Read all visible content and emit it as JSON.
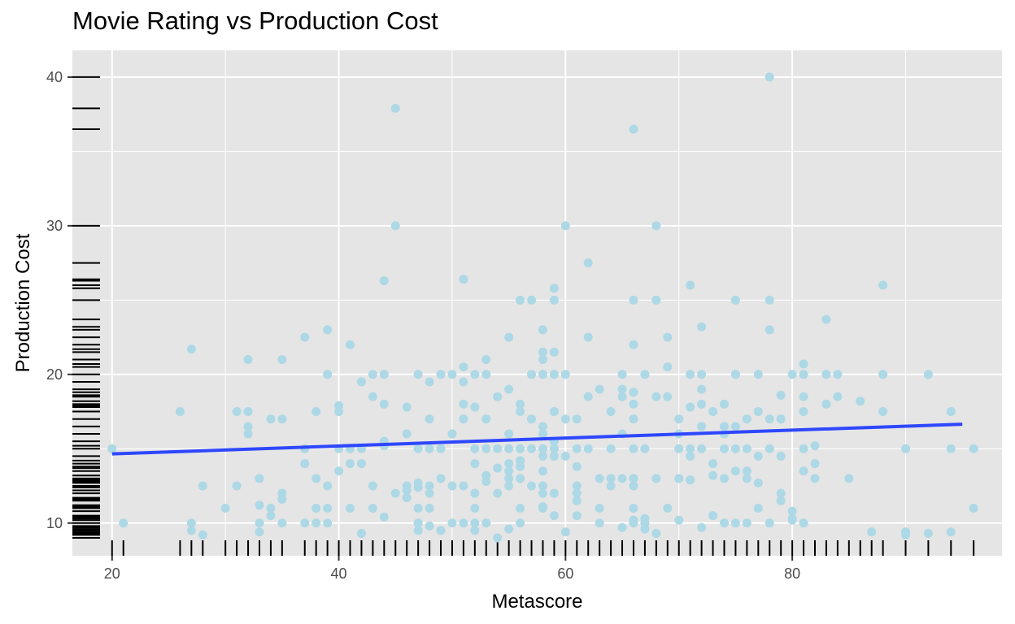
{
  "chart_data": {
    "type": "scatter",
    "title": "Movie Rating vs Production Cost",
    "xlabel": "Metascore",
    "ylabel": "Production Cost",
    "xlim": [
      16.5,
      98.5
    ],
    "ylim": [
      7.8,
      41.8
    ],
    "x_ticks": [
      20,
      40,
      60,
      80
    ],
    "y_ticks": [
      10,
      20,
      30,
      40
    ],
    "grid": true,
    "rug": true,
    "colors": {
      "points": "#add8e6",
      "trend": "#2e47ff",
      "panel": "#e5e5e5",
      "grid": "#ffffff",
      "rug": "#000000"
    },
    "trend_line": {
      "x": [
        20,
        95
      ],
      "y": [
        14.65,
        16.65
      ]
    },
    "points": [
      [
        20,
        15
      ],
      [
        21,
        10
      ],
      [
        26,
        17.5
      ],
      [
        27,
        21.7
      ],
      [
        27,
        10
      ],
      [
        27,
        9.5
      ],
      [
        28,
        12.5
      ],
      [
        28,
        9.2
      ],
      [
        30,
        11
      ],
      [
        31,
        17.5
      ],
      [
        31,
        12.5
      ],
      [
        32,
        21
      ],
      [
        32,
        17.5
      ],
      [
        32,
        16.5
      ],
      [
        32,
        16
      ],
      [
        33,
        13
      ],
      [
        33,
        11.2
      ],
      [
        33,
        10
      ],
      [
        33,
        9.4
      ],
      [
        34,
        17
      ],
      [
        34,
        11
      ],
      [
        34,
        10.5
      ],
      [
        35,
        21
      ],
      [
        35,
        17
      ],
      [
        35,
        12
      ],
      [
        35,
        11.6
      ],
      [
        35,
        10
      ],
      [
        37,
        22.5
      ],
      [
        37,
        15
      ],
      [
        37,
        14
      ],
      [
        37,
        10
      ],
      [
        38,
        17.5
      ],
      [
        38,
        13
      ],
      [
        38,
        11
      ],
      [
        38,
        10
      ],
      [
        39,
        23
      ],
      [
        39,
        20
      ],
      [
        39,
        12.5
      ],
      [
        39,
        11
      ],
      [
        39,
        10
      ],
      [
        40,
        17.9
      ],
      [
        40,
        17.5
      ],
      [
        40,
        15
      ],
      [
        40,
        13.5
      ],
      [
        41,
        22
      ],
      [
        41,
        15
      ],
      [
        41,
        14
      ],
      [
        41,
        11
      ],
      [
        42,
        19.5
      ],
      [
        42,
        15
      ],
      [
        42,
        14
      ],
      [
        42,
        9.3
      ],
      [
        43,
        20
      ],
      [
        43,
        18.5
      ],
      [
        43,
        12.5
      ],
      [
        43,
        11
      ],
      [
        44,
        26.3
      ],
      [
        44,
        20
      ],
      [
        44,
        18
      ],
      [
        44,
        15.5
      ],
      [
        44,
        15.2
      ],
      [
        44,
        10.4
      ],
      [
        45,
        37.9
      ],
      [
        45,
        30
      ],
      [
        45,
        12
      ],
      [
        46,
        17.8
      ],
      [
        46,
        16
      ],
      [
        46,
        12.5
      ],
      [
        46,
        12.2
      ],
      [
        46,
        11.7
      ],
      [
        47,
        20
      ],
      [
        47,
        15
      ],
      [
        47,
        12.7
      ],
      [
        47,
        12.4
      ],
      [
        47,
        11
      ],
      [
        47,
        10
      ],
      [
        47,
        9.5
      ],
      [
        48,
        19.5
      ],
      [
        48,
        17
      ],
      [
        48,
        15
      ],
      [
        48,
        12.5
      ],
      [
        48,
        12
      ],
      [
        48,
        11
      ],
      [
        48,
        9.8
      ],
      [
        49,
        20
      ],
      [
        49,
        15
      ],
      [
        49,
        13
      ],
      [
        49,
        9.5
      ],
      [
        50,
        20
      ],
      [
        50,
        16
      ],
      [
        50,
        12.5
      ],
      [
        50,
        10
      ],
      [
        51,
        26.4
      ],
      [
        51,
        20.5
      ],
      [
        51,
        19.5
      ],
      [
        51,
        18
      ],
      [
        51,
        17
      ],
      [
        51,
        12.5
      ],
      [
        51,
        10
      ],
      [
        52,
        20
      ],
      [
        52,
        17.8
      ],
      [
        52,
        15
      ],
      [
        52,
        14
      ],
      [
        52,
        12
      ],
      [
        52,
        11
      ],
      [
        52,
        10
      ],
      [
        52,
        9.5
      ],
      [
        53,
        21
      ],
      [
        53,
        20
      ],
      [
        53,
        17
      ],
      [
        53,
        15
      ],
      [
        53,
        13.2
      ],
      [
        53,
        12.8
      ],
      [
        53,
        10
      ],
      [
        54,
        18.5
      ],
      [
        54,
        15
      ],
      [
        54,
        13.7
      ],
      [
        54,
        12
      ],
      [
        54,
        9
      ],
      [
        55,
        22.5
      ],
      [
        55,
        19
      ],
      [
        55,
        16
      ],
      [
        55,
        15
      ],
      [
        55,
        14
      ],
      [
        55,
        13.5
      ],
      [
        55,
        13
      ],
      [
        55,
        12.5
      ],
      [
        55,
        9.6
      ],
      [
        56,
        25
      ],
      [
        56,
        18
      ],
      [
        56,
        17.5
      ],
      [
        56,
        15
      ],
      [
        56,
        14.2
      ],
      [
        56,
        13.8
      ],
      [
        56,
        13
      ],
      [
        56,
        11
      ],
      [
        56,
        10
      ],
      [
        57,
        25
      ],
      [
        57,
        20
      ],
      [
        57,
        17
      ],
      [
        57,
        15
      ],
      [
        57,
        12.5
      ],
      [
        58,
        23
      ],
      [
        58,
        21.5
      ],
      [
        58,
        21
      ],
      [
        58,
        20
      ],
      [
        58,
        16.5
      ],
      [
        58,
        16
      ],
      [
        58,
        15
      ],
      [
        58,
        14.5
      ],
      [
        58,
        13.5
      ],
      [
        58,
        12.5
      ],
      [
        58,
        12
      ],
      [
        58,
        11.1
      ],
      [
        58,
        11
      ],
      [
        59,
        25.8
      ],
      [
        59,
        25
      ],
      [
        59,
        21.5
      ],
      [
        59,
        20
      ],
      [
        59,
        17.5
      ],
      [
        59,
        15.5
      ],
      [
        59,
        15
      ],
      [
        59,
        14.5
      ],
      [
        59,
        12
      ],
      [
        59,
        10.5
      ],
      [
        60,
        30
      ],
      [
        60,
        20
      ],
      [
        60,
        17
      ],
      [
        60,
        14.5
      ],
      [
        60,
        9.4
      ],
      [
        61,
        17
      ],
      [
        61,
        15
      ],
      [
        61,
        13.8
      ],
      [
        61,
        12.5
      ],
      [
        61,
        12
      ],
      [
        61,
        11.5
      ],
      [
        61,
        10.5
      ],
      [
        62,
        27.5
      ],
      [
        62,
        22.5
      ],
      [
        62,
        18.5
      ],
      [
        62,
        15
      ],
      [
        63,
        19
      ],
      [
        63,
        13
      ],
      [
        63,
        11
      ],
      [
        63,
        10
      ],
      [
        64,
        17.5
      ],
      [
        64,
        15
      ],
      [
        64,
        13
      ],
      [
        64,
        12.5
      ],
      [
        65,
        20
      ],
      [
        65,
        19
      ],
      [
        65,
        18.5
      ],
      [
        65,
        16
      ],
      [
        65,
        13
      ],
      [
        65,
        9.7
      ],
      [
        66,
        36.5
      ],
      [
        66,
        25
      ],
      [
        66,
        22
      ],
      [
        66,
        18.8
      ],
      [
        66,
        18
      ],
      [
        66,
        17
      ],
      [
        66,
        15
      ],
      [
        66,
        13
      ],
      [
        66,
        12.5
      ],
      [
        66,
        11
      ],
      [
        66,
        10.2
      ],
      [
        66,
        10
      ],
      [
        67,
        20
      ],
      [
        67,
        15
      ],
      [
        67,
        10.3
      ],
      [
        67,
        10
      ],
      [
        67,
        9.6
      ],
      [
        68,
        30
      ],
      [
        68,
        25
      ],
      [
        68,
        18.5
      ],
      [
        68,
        13
      ],
      [
        68,
        9.3
      ],
      [
        69,
        22.5
      ],
      [
        69,
        20.5
      ],
      [
        69,
        18.5
      ],
      [
        69,
        11
      ],
      [
        70,
        17
      ],
      [
        70,
        16
      ],
      [
        70,
        15
      ],
      [
        70,
        13
      ],
      [
        70,
        10.2
      ],
      [
        71,
        26
      ],
      [
        71,
        20
      ],
      [
        71,
        17.8
      ],
      [
        71,
        15
      ],
      [
        71,
        14.5
      ],
      [
        71,
        12.9
      ],
      [
        72,
        23.2
      ],
      [
        72,
        20
      ],
      [
        72,
        19
      ],
      [
        72,
        18
      ],
      [
        72,
        16.5
      ],
      [
        72,
        15
      ],
      [
        72,
        9.7
      ],
      [
        73,
        17.5
      ],
      [
        73,
        14
      ],
      [
        73,
        13.2
      ],
      [
        73,
        10.5
      ],
      [
        74,
        18
      ],
      [
        74,
        16.5
      ],
      [
        74,
        16
      ],
      [
        74,
        15
      ],
      [
        74,
        13
      ],
      [
        74,
        10
      ],
      [
        75,
        25
      ],
      [
        75,
        20
      ],
      [
        75,
        16.5
      ],
      [
        75,
        15
      ],
      [
        75,
        13.5
      ],
      [
        75,
        10
      ],
      [
        76,
        17
      ],
      [
        76,
        15
      ],
      [
        76,
        13.5
      ],
      [
        76,
        13
      ],
      [
        76,
        10
      ],
      [
        77,
        20
      ],
      [
        77,
        17.5
      ],
      [
        77,
        14.5
      ],
      [
        77,
        12.7
      ],
      [
        77,
        11
      ],
      [
        78,
        40
      ],
      [
        78,
        25
      ],
      [
        78,
        23
      ],
      [
        78,
        17
      ],
      [
        78,
        15
      ],
      [
        78,
        10
      ],
      [
        79,
        18.6
      ],
      [
        79,
        17
      ],
      [
        79,
        14.5
      ],
      [
        79,
        12
      ],
      [
        79,
        11.5
      ],
      [
        80,
        20
      ],
      [
        80,
        10.8
      ],
      [
        80,
        10.3
      ],
      [
        80,
        10.2
      ],
      [
        81,
        20.7
      ],
      [
        81,
        20
      ],
      [
        81,
        18.5
      ],
      [
        81,
        17.5
      ],
      [
        81,
        15
      ],
      [
        81,
        13.5
      ],
      [
        81,
        10
      ],
      [
        82,
        15.2
      ],
      [
        82,
        14
      ],
      [
        82,
        13
      ],
      [
        83,
        23.7
      ],
      [
        83,
        20
      ],
      [
        83,
        18
      ],
      [
        84,
        20
      ],
      [
        84,
        18.5
      ],
      [
        85,
        13
      ],
      [
        86,
        18.2
      ],
      [
        87,
        9.4
      ],
      [
        88,
        26
      ],
      [
        88,
        20
      ],
      [
        88,
        17.5
      ],
      [
        90,
        15
      ],
      [
        90,
        9.4
      ],
      [
        90,
        9.2
      ],
      [
        92,
        20
      ],
      [
        92,
        9.3
      ],
      [
        94,
        17.5
      ],
      [
        94,
        15
      ],
      [
        94,
        9.4
      ],
      [
        96,
        15
      ],
      [
        96,
        11
      ]
    ]
  }
}
